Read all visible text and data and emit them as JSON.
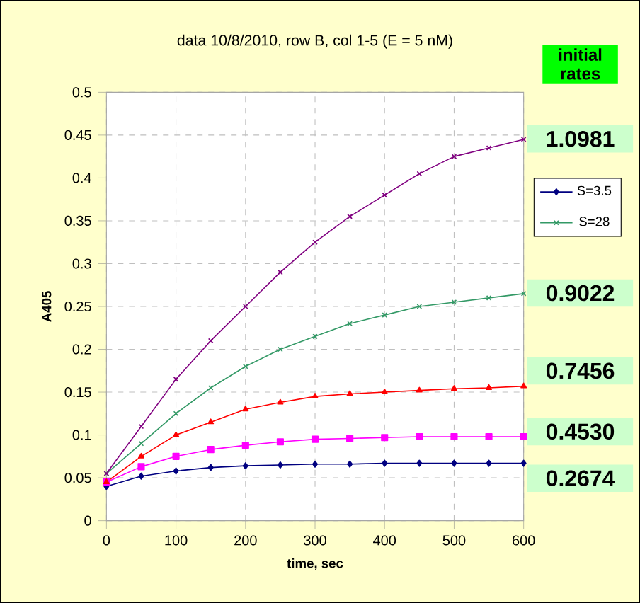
{
  "chart_data": {
    "type": "line",
    "title": "data 10/8/2010, row B, col 1-5 (E = 5 nM)",
    "xlabel": "time, sec",
    "ylabel": "A405",
    "x": [
      0,
      50,
      100,
      150,
      200,
      250,
      300,
      350,
      400,
      450,
      500,
      550,
      600
    ],
    "series": [
      {
        "name": "S=3.5",
        "color": "#000080",
        "marker": "diamond",
        "values": [
          0.04,
          0.052,
          0.058,
          0.062,
          0.064,
          0.065,
          0.066,
          0.066,
          0.067,
          0.067,
          0.067,
          0.067,
          0.067
        ]
      },
      {
        "color": "#ff00ff",
        "marker": "square",
        "values": [
          0.045,
          0.063,
          0.075,
          0.083,
          0.088,
          0.092,
          0.095,
          0.096,
          0.097,
          0.098,
          0.098,
          0.098,
          0.098
        ]
      },
      {
        "color": "#ff0000",
        "marker": "triangle",
        "values": [
          0.045,
          0.075,
          0.1,
          0.115,
          0.13,
          0.138,
          0.145,
          0.148,
          0.15,
          0.152,
          0.154,
          0.155,
          0.157
        ]
      },
      {
        "name": "S=28",
        "color": "#339966",
        "marker": "cross",
        "values": [
          0.055,
          0.09,
          0.125,
          0.155,
          0.18,
          0.2,
          0.215,
          0.23,
          0.24,
          0.25,
          0.255,
          0.26,
          0.265
        ]
      },
      {
        "color": "#800080",
        "marker": "cross",
        "values": [
          0.055,
          0.11,
          0.165,
          0.21,
          0.25,
          0.29,
          0.325,
          0.355,
          0.38,
          0.405,
          0.425,
          0.435,
          0.445
        ]
      }
    ],
    "xlim": [
      0,
      600
    ],
    "xticks": [
      0,
      100,
      200,
      300,
      400,
      500,
      600
    ],
    "ylim": [
      0,
      0.5
    ],
    "yticks": [
      0,
      0.05,
      0.1,
      0.15,
      0.2,
      0.25,
      0.3,
      0.35,
      0.4,
      0.45,
      0.5
    ],
    "grid": true,
    "legend": "right",
    "annotations": [
      "initial rates",
      "1.0981",
      "0.9022",
      "0.7456",
      "0.4530",
      "0.2674"
    ]
  }
}
